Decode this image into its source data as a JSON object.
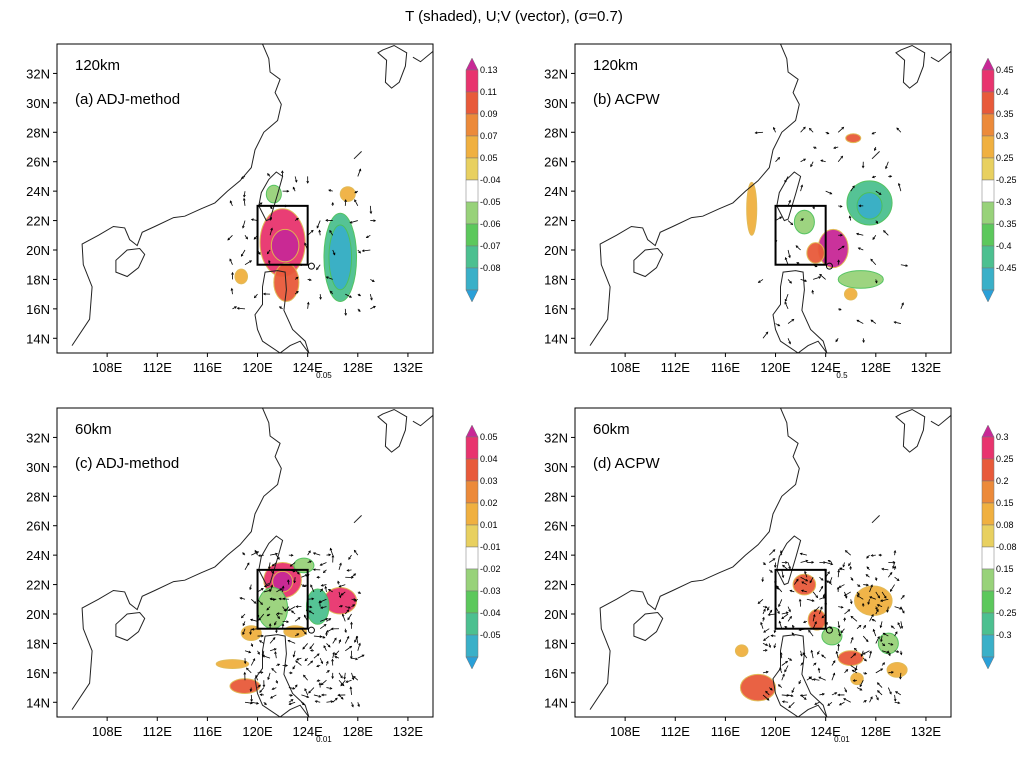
{
  "figure_title": "T (shaded), U;V (vector), (σ=0.7)",
  "colors": {
    "background": "#ffffff",
    "coast": "#222222",
    "box": "#000000",
    "cb_neg": [
      "#2aa0d8",
      "#3ab0c8",
      "#4cc090",
      "#5cc85c",
      "#98d27a",
      "#ffffff"
    ],
    "cb_pos": [
      "#ffffff",
      "#e8d060",
      "#f0b040",
      "#ec8a3a",
      "#e85a3a",
      "#e8346e",
      "#c82896"
    ]
  },
  "chart_data": [
    {
      "type": "contour-map",
      "panel_label": "(a) ADJ-method",
      "resolution": "120km",
      "x_ticks": [
        "108E",
        "112E",
        "116E",
        "120E",
        "124E",
        "128E",
        "132E"
      ],
      "y_ticks": [
        "32N",
        "30N",
        "28N",
        "26N",
        "24N",
        "22N",
        "20N",
        "18N",
        "16N",
        "14N"
      ],
      "xlim": [
        104,
        134
      ],
      "ylim": [
        13,
        34
      ],
      "colorbar_labels": [
        "0.13",
        "0.11",
        "0.09",
        "0.07",
        "0.05",
        "-0.04",
        "-0.05",
        "-0.06",
        "-0.07",
        "-0.08"
      ],
      "ref_vector": "0.05",
      "box": {
        "lon": [
          120,
          124
        ],
        "lat": [
          19,
          23
        ]
      },
      "blobs": [
        {
          "lon": 122,
          "lat": 20.5,
          "rx": 1.8,
          "ry": 2.3,
          "level": "pos_hi"
        },
        {
          "lon": 122.2,
          "lat": 20.3,
          "rx": 1.1,
          "ry": 1.1,
          "level": "pos_max"
        },
        {
          "lon": 122.3,
          "lat": 17.8,
          "rx": 1.0,
          "ry": 1.3,
          "level": "pos_mid"
        },
        {
          "lon": 118.7,
          "lat": 18.2,
          "rx": 0.5,
          "ry": 0.5,
          "level": "pos_lo"
        },
        {
          "lon": 121.3,
          "lat": 23.8,
          "rx": 0.6,
          "ry": 0.6,
          "level": "neg_lo"
        },
        {
          "lon": 126.6,
          "lat": 19.5,
          "rx": 1.3,
          "ry": 3.0,
          "level": "neg_mid"
        },
        {
          "lon": 126.6,
          "lat": 19.5,
          "rx": 0.9,
          "ry": 2.2,
          "level": "neg_hi"
        },
        {
          "lon": 127.2,
          "lat": 23.8,
          "rx": 0.6,
          "ry": 0.5,
          "level": "pos_lo"
        }
      ],
      "vector_region": {
        "lon": [
          118,
          129
        ],
        "lat": [
          16,
          25
        ],
        "step": 1.0,
        "density": 0.6
      }
    },
    {
      "type": "contour-map",
      "panel_label": "(b) ACPW",
      "resolution": "120km",
      "x_ticks": [
        "108E",
        "112E",
        "116E",
        "120E",
        "124E",
        "128E",
        "132E"
      ],
      "y_ticks": [
        "32N",
        "30N",
        "28N",
        "26N",
        "24N",
        "22N",
        "20N",
        "18N",
        "16N",
        "14N"
      ],
      "xlim": [
        104,
        134
      ],
      "ylim": [
        13,
        34
      ],
      "colorbar_labels": [
        "0.45",
        "0.4",
        "0.35",
        "0.3",
        "0.25",
        "-0.25",
        "-0.3",
        "-0.35",
        "-0.4",
        "-0.45"
      ],
      "ref_vector": "0.5",
      "box": {
        "lon": [
          120,
          124
        ],
        "lat": [
          19,
          23
        ]
      },
      "blobs": [
        {
          "lon": 118.1,
          "lat": 22.8,
          "rx": 0.4,
          "ry": 1.8,
          "level": "pos_lo"
        },
        {
          "lon": 124.6,
          "lat": 20.1,
          "rx": 1.2,
          "ry": 1.3,
          "level": "pos_max"
        },
        {
          "lon": 123.2,
          "lat": 19.8,
          "rx": 0.7,
          "ry": 0.7,
          "level": "pos_mid"
        },
        {
          "lon": 127.5,
          "lat": 23.2,
          "rx": 1.8,
          "ry": 1.5,
          "level": "neg_mid"
        },
        {
          "lon": 127.5,
          "lat": 23.0,
          "rx": 1.0,
          "ry": 0.9,
          "level": "neg_hi"
        },
        {
          "lon": 122.3,
          "lat": 21.9,
          "rx": 0.8,
          "ry": 0.8,
          "level": "neg_lo"
        },
        {
          "lon": 126.8,
          "lat": 18.0,
          "rx": 1.8,
          "ry": 0.6,
          "level": "neg_lo"
        },
        {
          "lon": 126.2,
          "lat": 27.6,
          "rx": 0.6,
          "ry": 0.3,
          "level": "pos_mid"
        },
        {
          "lon": 126.0,
          "lat": 17.0,
          "rx": 0.5,
          "ry": 0.4,
          "level": "pos_lo"
        }
      ],
      "vector_region": {
        "lon": [
          119,
          130
        ],
        "lat": [
          14,
          28
        ],
        "step": 1.0,
        "density": 0.45
      }
    },
    {
      "type": "contour-map",
      "panel_label": "(c) ADJ-method",
      "resolution": "60km",
      "x_ticks": [
        "108E",
        "112E",
        "116E",
        "120E",
        "124E",
        "128E",
        "132E"
      ],
      "y_ticks": [
        "32N",
        "30N",
        "28N",
        "26N",
        "24N",
        "22N",
        "20N",
        "18N",
        "16N",
        "14N"
      ],
      "xlim": [
        104,
        134
      ],
      "ylim": [
        13,
        34
      ],
      "colorbar_labels": [
        "0.05",
        "0.04",
        "0.03",
        "0.02",
        "0.01",
        "-0.01",
        "-0.02",
        "-0.03",
        "-0.04",
        "-0.05"
      ],
      "ref_vector": "0.01",
      "box": {
        "lon": [
          120,
          124
        ],
        "lat": [
          19,
          23
        ]
      },
      "blobs": [
        {
          "lon": 122.0,
          "lat": 22.3,
          "rx": 1.5,
          "ry": 1.2,
          "level": "pos_hi"
        },
        {
          "lon": 122.0,
          "lat": 22.2,
          "rx": 0.8,
          "ry": 0.7,
          "level": "pos_max"
        },
        {
          "lon": 126.6,
          "lat": 20.9,
          "rx": 1.3,
          "ry": 0.9,
          "level": "pos_hi"
        },
        {
          "lon": 124.8,
          "lat": 20.5,
          "rx": 0.9,
          "ry": 1.2,
          "level": "neg_mid"
        },
        {
          "lon": 121.2,
          "lat": 20.4,
          "rx": 1.2,
          "ry": 1.4,
          "level": "neg_lo"
        },
        {
          "lon": 123.7,
          "lat": 23.3,
          "rx": 0.8,
          "ry": 0.5,
          "level": "neg_lo"
        },
        {
          "lon": 119.0,
          "lat": 15.1,
          "rx": 1.2,
          "ry": 0.5,
          "level": "pos_mid"
        },
        {
          "lon": 118.0,
          "lat": 16.6,
          "rx": 1.3,
          "ry": 0.3,
          "level": "pos_lo"
        },
        {
          "lon": 119.5,
          "lat": 18.7,
          "rx": 0.8,
          "ry": 0.5,
          "level": "pos_lo"
        },
        {
          "lon": 123.0,
          "lat": 18.8,
          "rx": 0.9,
          "ry": 0.4,
          "level": "pos_lo"
        }
      ],
      "vector_region": {
        "lon": [
          119,
          128
        ],
        "lat": [
          14,
          24
        ],
        "step": 0.5,
        "density": 0.55
      }
    },
    {
      "type": "contour-map",
      "panel_label": "(d) ACPW",
      "resolution": "60km",
      "x_ticks": [
        "108E",
        "112E",
        "116E",
        "120E",
        "124E",
        "128E",
        "132E"
      ],
      "y_ticks": [
        "32N",
        "30N",
        "28N",
        "26N",
        "24N",
        "22N",
        "20N",
        "18N",
        "16N",
        "14N"
      ],
      "xlim": [
        104,
        134
      ],
      "ylim": [
        13,
        34
      ],
      "colorbar_labels": [
        "0.3",
        "0.25",
        "0.2",
        "0.15",
        "0.08",
        "-0.08",
        "0.15",
        "-0.2",
        "-0.25",
        "-0.3"
      ],
      "ref_vector": "0.01",
      "box": {
        "lon": [
          120,
          124
        ],
        "lat": [
          19,
          23
        ]
      },
      "blobs": [
        {
          "lon": 122.3,
          "lat": 22.0,
          "rx": 0.9,
          "ry": 0.7,
          "level": "pos_mid"
        },
        {
          "lon": 123.3,
          "lat": 19.6,
          "rx": 0.7,
          "ry": 0.7,
          "level": "pos_mid"
        },
        {
          "lon": 127.8,
          "lat": 20.9,
          "rx": 1.5,
          "ry": 1.0,
          "level": "pos_lo"
        },
        {
          "lon": 126.0,
          "lat": 17.0,
          "rx": 1.0,
          "ry": 0.5,
          "level": "pos_mid"
        },
        {
          "lon": 124.5,
          "lat": 18.5,
          "rx": 0.8,
          "ry": 0.6,
          "level": "neg_lo"
        },
        {
          "lon": 129.0,
          "lat": 18.0,
          "rx": 0.8,
          "ry": 0.7,
          "level": "neg_lo"
        },
        {
          "lon": 118.6,
          "lat": 15.0,
          "rx": 1.4,
          "ry": 0.9,
          "level": "pos_mid"
        },
        {
          "lon": 117.3,
          "lat": 17.5,
          "rx": 0.5,
          "ry": 0.4,
          "level": "pos_lo"
        },
        {
          "lon": 129.7,
          "lat": 16.2,
          "rx": 0.8,
          "ry": 0.5,
          "level": "pos_lo"
        },
        {
          "lon": 126.5,
          "lat": 15.6,
          "rx": 0.5,
          "ry": 0.4,
          "level": "pos_lo"
        }
      ],
      "vector_region": {
        "lon": [
          119,
          130
        ],
        "lat": [
          14,
          24
        ],
        "step": 0.5,
        "density": 0.45
      }
    }
  ]
}
